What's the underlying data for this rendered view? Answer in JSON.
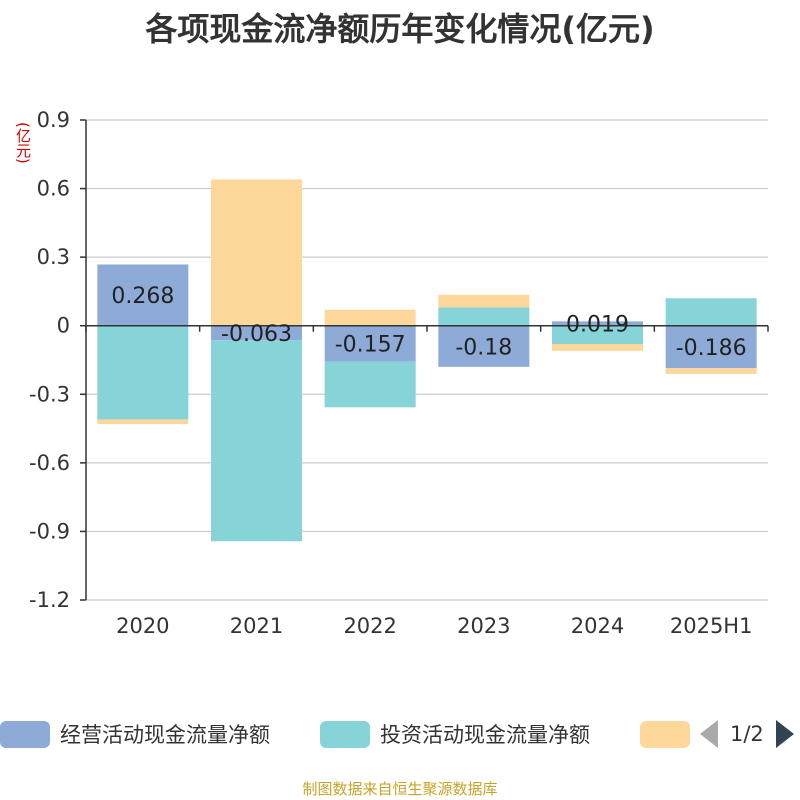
{
  "title": "各项现金流净额历年变化情况(亿元)",
  "unit_label": "(亿元)",
  "source": "制图数据来自恒生聚源数据库",
  "legend": {
    "items": [
      {
        "label": "经营活动现金流量净额",
        "color": "#8eabd8"
      },
      {
        "label": "投资活动现金流量净额",
        "color": "#86d4d8"
      },
      {
        "label": "",
        "color": "#fdd89a"
      }
    ],
    "page": "1/2"
  },
  "chart_data": {
    "type": "bar",
    "stacked": true,
    "categories": [
      "2020",
      "2021",
      "2022",
      "2023",
      "2024",
      "2025H1"
    ],
    "ylim": [
      -1.2,
      0.9
    ],
    "yticks": [
      0.9,
      0.6,
      0.3,
      0,
      -0.3,
      -0.6,
      -0.9,
      -1.2
    ],
    "ytick_labels": [
      "0.9",
      "0.6",
      "0.3",
      "0",
      "-0.3",
      "-0.6",
      "-0.9",
      "-1.2"
    ],
    "grid": true,
    "series": [
      {
        "name": "经营活动现金流量净额",
        "color": "#8eabd8",
        "values": [
          0.268,
          -0.063,
          -0.157,
          -0.18,
          0.019,
          -0.186
        ],
        "labels": [
          "0.268",
          "-0.063",
          "-0.157",
          "-0.18",
          "0.019",
          "-0.186"
        ]
      },
      {
        "name": "投资活动现金流量净额",
        "color": "#86d4d8",
        "values": [
          -0.41,
          -0.88,
          -0.2,
          0.08,
          -0.08,
          0.12
        ]
      },
      {
        "color": "#fdd89a",
        "values": [
          -0.02,
          0.64,
          0.07,
          0.055,
          -0.03,
          -0.025
        ]
      }
    ]
  }
}
